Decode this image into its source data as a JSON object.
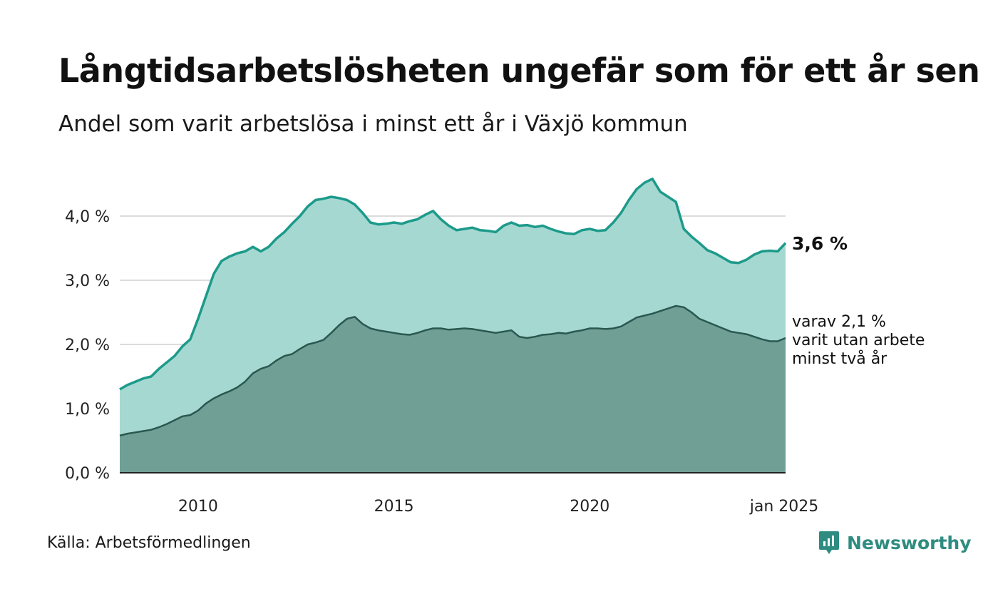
{
  "header": {
    "title": "Långtidsarbetslösheten ungefär som för ett år sen",
    "subtitle": "Andel som varit arbetslösa i minst ett år i Växjö kommun"
  },
  "footer": {
    "source": "Källa: Arbetsförmedlingen",
    "brand": "Newsworthy"
  },
  "colors": {
    "outer_fill": "#a6d8d2",
    "outer_line": "#1c9a8a",
    "inner_fill": "#709f96",
    "inner_line": "#2a5850",
    "grid": "#dcdcdc",
    "brand": "#2e8c80"
  },
  "chart_data": {
    "type": "area",
    "title": "Långtidsarbetslösheten ungefär som för ett år sen",
    "subtitle": "Andel som varit arbetslösa i minst ett år i Växjö kommun",
    "ylim": [
      0,
      4.6
    ],
    "y_ticks": [
      {
        "value": 0,
        "label": "0,0 %"
      },
      {
        "value": 1,
        "label": "1,0 %"
      },
      {
        "value": 2,
        "label": "2,0 %"
      },
      {
        "value": 3,
        "label": "3,0 %"
      },
      {
        "value": 4,
        "label": "4,0 %"
      }
    ],
    "xlim": [
      2008.0,
      2025.0
    ],
    "x_ticks": [
      {
        "value": 2010,
        "label": "2010"
      },
      {
        "value": 2015,
        "label": "2015"
      },
      {
        "value": 2020,
        "label": "2020"
      },
      {
        "value": 2025,
        "label": "jan 2025"
      }
    ],
    "grid": true,
    "series": [
      {
        "role": "outer",
        "end_label": "3,6 %",
        "points": [
          [
            2008.0,
            1.3
          ],
          [
            2008.2,
            1.37
          ],
          [
            2008.4,
            1.42
          ],
          [
            2008.6,
            1.47
          ],
          [
            2008.8,
            1.5
          ],
          [
            2009.0,
            1.62
          ],
          [
            2009.2,
            1.72
          ],
          [
            2009.4,
            1.82
          ],
          [
            2009.6,
            1.97
          ],
          [
            2009.8,
            2.08
          ],
          [
            2010.0,
            2.4
          ],
          [
            2010.2,
            2.75
          ],
          [
            2010.4,
            3.1
          ],
          [
            2010.6,
            3.3
          ],
          [
            2010.8,
            3.37
          ],
          [
            2011.0,
            3.42
          ],
          [
            2011.2,
            3.45
          ],
          [
            2011.4,
            3.52
          ],
          [
            2011.6,
            3.45
          ],
          [
            2011.8,
            3.52
          ],
          [
            2012.0,
            3.65
          ],
          [
            2012.2,
            3.75
          ],
          [
            2012.4,
            3.88
          ],
          [
            2012.6,
            4.0
          ],
          [
            2012.8,
            4.15
          ],
          [
            2013.0,
            4.25
          ],
          [
            2013.2,
            4.27
          ],
          [
            2013.4,
            4.3
          ],
          [
            2013.6,
            4.28
          ],
          [
            2013.8,
            4.25
          ],
          [
            2014.0,
            4.18
          ],
          [
            2014.2,
            4.05
          ],
          [
            2014.4,
            3.9
          ],
          [
            2014.6,
            3.87
          ],
          [
            2014.8,
            3.88
          ],
          [
            2015.0,
            3.9
          ],
          [
            2015.2,
            3.88
          ],
          [
            2015.4,
            3.92
          ],
          [
            2015.6,
            3.95
          ],
          [
            2015.8,
            4.02
          ],
          [
            2016.0,
            4.08
          ],
          [
            2016.2,
            3.95
          ],
          [
            2016.4,
            3.85
          ],
          [
            2016.6,
            3.78
          ],
          [
            2016.8,
            3.8
          ],
          [
            2017.0,
            3.82
          ],
          [
            2017.2,
            3.78
          ],
          [
            2017.4,
            3.77
          ],
          [
            2017.6,
            3.75
          ],
          [
            2017.8,
            3.85
          ],
          [
            2018.0,
            3.9
          ],
          [
            2018.2,
            3.85
          ],
          [
            2018.4,
            3.86
          ],
          [
            2018.6,
            3.83
          ],
          [
            2018.8,
            3.85
          ],
          [
            2019.0,
            3.8
          ],
          [
            2019.2,
            3.76
          ],
          [
            2019.4,
            3.73
          ],
          [
            2019.6,
            3.72
          ],
          [
            2019.8,
            3.78
          ],
          [
            2020.0,
            3.8
          ],
          [
            2020.2,
            3.77
          ],
          [
            2020.4,
            3.78
          ],
          [
            2020.6,
            3.9
          ],
          [
            2020.8,
            4.05
          ],
          [
            2021.0,
            4.25
          ],
          [
            2021.2,
            4.42
          ],
          [
            2021.4,
            4.52
          ],
          [
            2021.6,
            4.58
          ],
          [
            2021.8,
            4.38
          ],
          [
            2022.0,
            4.3
          ],
          [
            2022.2,
            4.22
          ],
          [
            2022.4,
            3.8
          ],
          [
            2022.6,
            3.68
          ],
          [
            2022.8,
            3.58
          ],
          [
            2023.0,
            3.47
          ],
          [
            2023.2,
            3.42
          ],
          [
            2023.4,
            3.35
          ],
          [
            2023.6,
            3.28
          ],
          [
            2023.8,
            3.27
          ],
          [
            2024.0,
            3.32
          ],
          [
            2024.2,
            3.4
          ],
          [
            2024.4,
            3.45
          ],
          [
            2024.6,
            3.46
          ],
          [
            2024.8,
            3.45
          ],
          [
            2025.0,
            3.58
          ]
        ]
      },
      {
        "role": "inner",
        "end_label": [
          "varav 2,1 %",
          "varit utan arbete",
          "minst två år"
        ],
        "points": [
          [
            2008.0,
            0.58
          ],
          [
            2008.2,
            0.61
          ],
          [
            2008.4,
            0.63
          ],
          [
            2008.6,
            0.65
          ],
          [
            2008.8,
            0.67
          ],
          [
            2009.0,
            0.71
          ],
          [
            2009.2,
            0.76
          ],
          [
            2009.4,
            0.82
          ],
          [
            2009.6,
            0.88
          ],
          [
            2009.8,
            0.9
          ],
          [
            2010.0,
            0.97
          ],
          [
            2010.2,
            1.08
          ],
          [
            2010.4,
            1.16
          ],
          [
            2010.6,
            1.22
          ],
          [
            2010.8,
            1.27
          ],
          [
            2011.0,
            1.33
          ],
          [
            2011.2,
            1.42
          ],
          [
            2011.4,
            1.55
          ],
          [
            2011.6,
            1.62
          ],
          [
            2011.8,
            1.66
          ],
          [
            2012.0,
            1.75
          ],
          [
            2012.2,
            1.82
          ],
          [
            2012.4,
            1.85
          ],
          [
            2012.6,
            1.93
          ],
          [
            2012.8,
            2.0
          ],
          [
            2013.0,
            2.03
          ],
          [
            2013.2,
            2.07
          ],
          [
            2013.4,
            2.18
          ],
          [
            2013.6,
            2.3
          ],
          [
            2013.8,
            2.4
          ],
          [
            2014.0,
            2.43
          ],
          [
            2014.2,
            2.32
          ],
          [
            2014.4,
            2.25
          ],
          [
            2014.6,
            2.22
          ],
          [
            2014.8,
            2.2
          ],
          [
            2015.0,
            2.18
          ],
          [
            2015.2,
            2.16
          ],
          [
            2015.4,
            2.15
          ],
          [
            2015.6,
            2.18
          ],
          [
            2015.8,
            2.22
          ],
          [
            2016.0,
            2.25
          ],
          [
            2016.2,
            2.25
          ],
          [
            2016.4,
            2.23
          ],
          [
            2016.6,
            2.24
          ],
          [
            2016.8,
            2.25
          ],
          [
            2017.0,
            2.24
          ],
          [
            2017.2,
            2.22
          ],
          [
            2017.4,
            2.2
          ],
          [
            2017.6,
            2.18
          ],
          [
            2017.8,
            2.2
          ],
          [
            2018.0,
            2.22
          ],
          [
            2018.2,
            2.12
          ],
          [
            2018.4,
            2.1
          ],
          [
            2018.6,
            2.12
          ],
          [
            2018.8,
            2.15
          ],
          [
            2019.0,
            2.16
          ],
          [
            2019.2,
            2.18
          ],
          [
            2019.4,
            2.17
          ],
          [
            2019.6,
            2.2
          ],
          [
            2019.8,
            2.22
          ],
          [
            2020.0,
            2.25
          ],
          [
            2020.2,
            2.25
          ],
          [
            2020.4,
            2.24
          ],
          [
            2020.6,
            2.25
          ],
          [
            2020.8,
            2.28
          ],
          [
            2021.0,
            2.35
          ],
          [
            2021.2,
            2.42
          ],
          [
            2021.4,
            2.45
          ],
          [
            2021.6,
            2.48
          ],
          [
            2021.8,
            2.52
          ],
          [
            2022.0,
            2.56
          ],
          [
            2022.2,
            2.6
          ],
          [
            2022.4,
            2.58
          ],
          [
            2022.6,
            2.5
          ],
          [
            2022.8,
            2.4
          ],
          [
            2023.0,
            2.35
          ],
          [
            2023.2,
            2.3
          ],
          [
            2023.4,
            2.25
          ],
          [
            2023.6,
            2.2
          ],
          [
            2023.8,
            2.18
          ],
          [
            2024.0,
            2.16
          ],
          [
            2024.2,
            2.12
          ],
          [
            2024.4,
            2.08
          ],
          [
            2024.6,
            2.05
          ],
          [
            2024.8,
            2.05
          ],
          [
            2025.0,
            2.1
          ]
        ]
      }
    ]
  }
}
